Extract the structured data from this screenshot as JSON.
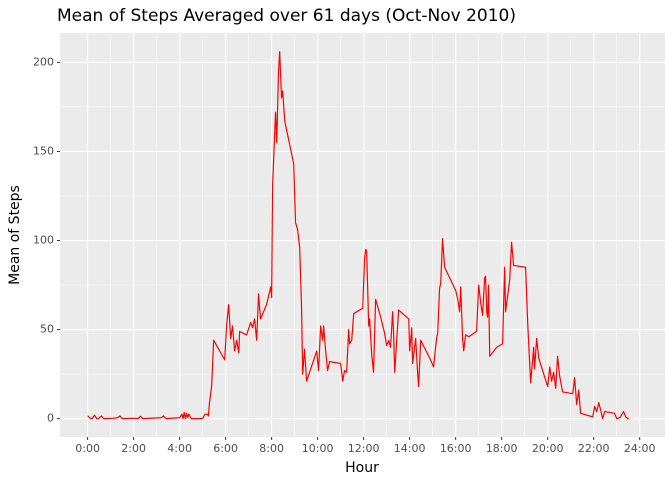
{
  "chart_data": {
    "type": "line",
    "title": "Mean of Steps Averaged over 61 days (Oct-Nov 2010)",
    "x_label": "Hour",
    "y_label": "Mean of Steps",
    "x": [
      0,
      0.1,
      0.2,
      0.3,
      0.4,
      0.5,
      0.6,
      0.7,
      1.1,
      1.3,
      1.4,
      1.5,
      2.0,
      2.2,
      2.3,
      2.4,
      3.2,
      3.3,
      3.4,
      4.0,
      4.1,
      4.15,
      4.2,
      4.25,
      4.3,
      4.35,
      4.4,
      4.5,
      5.0,
      5.1,
      5.2,
      5.25,
      5.3,
      5.39,
      5.48,
      5.96,
      6.04,
      6.13,
      6.22,
      6.3,
      6.39,
      6.48,
      6.57,
      6.61,
      6.91,
      7.09,
      7.17,
      7.26,
      7.35,
      7.43,
      7.52,
      7.78,
      7.96,
      8.0,
      8.04,
      8.17,
      8.22,
      8.3,
      8.35,
      8.43,
      8.48,
      8.57,
      8.96,
      9.04,
      9.13,
      9.22,
      9.3,
      9.35,
      9.43,
      9.52,
      9.96,
      10.04,
      10.13,
      10.22,
      10.26,
      10.35,
      10.43,
      10.52,
      11.0,
      11.09,
      11.17,
      11.26,
      11.35,
      11.39,
      11.48,
      11.57,
      11.96,
      12.04,
      12.09,
      12.13,
      12.22,
      12.26,
      12.35,
      12.43,
      12.52,
      12.74,
      12.91,
      13.0,
      13.09,
      13.17,
      13.26,
      13.3,
      13.35,
      13.52,
      13.96,
      14.0,
      14.09,
      14.13,
      14.26,
      14.35,
      14.39,
      14.48,
      14.91,
      15.04,
      15.17,
      15.22,
      15.3,
      15.35,
      15.43,
      15.52,
      16.0,
      16.09,
      16.17,
      16.22,
      16.3,
      16.35,
      16.43,
      16.57,
      16.91,
      17.0,
      17.09,
      17.17,
      17.26,
      17.3,
      17.35,
      17.39,
      17.43,
      17.48,
      17.78,
      18.04,
      18.13,
      18.17,
      18.26,
      18.35,
      18.43,
      18.52,
      19.04,
      19.13,
      19.26,
      19.39,
      19.43,
      19.52,
      19.61,
      20.0,
      20.09,
      20.17,
      20.26,
      20.35,
      20.43,
      20.52,
      20.65,
      21.09,
      21.17,
      21.26,
      21.35,
      21.43,
      21.96,
      22.04,
      22.13,
      22.22,
      22.3,
      22.39,
      22.48,
      22.91,
      23.0,
      23.13,
      23.3,
      23.39,
      23.48,
      23.52
    ],
    "series": [
      {
        "name": "Mean of Steps",
        "color": "#ff0000",
        "values": [
          1.7,
          0.3,
          0,
          2,
          0,
          0.3,
          1.5,
          0,
          0.2,
          0.5,
          1.5,
          0,
          0.2,
          0.1,
          1.3,
          0,
          0.5,
          1.5,
          0,
          0.5,
          2.5,
          0,
          3.5,
          0,
          3,
          0.5,
          2.5,
          0,
          0,
          2.5,
          2.5,
          1.5,
          9,
          18,
          44,
          33,
          52,
          64,
          45,
          52,
          38,
          44,
          37,
          49,
          47,
          54,
          51,
          56,
          44,
          70,
          56,
          64,
          74,
          68,
          130,
          172,
          155,
          195,
          206,
          180,
          184,
          167,
          143,
          110,
          106,
          96,
          63,
          25,
          39,
          21,
          38,
          27,
          52,
          44,
          52,
          38,
          27,
          32,
          31,
          21,
          27,
          26,
          50,
          42,
          44,
          59,
          62,
          90,
          95,
          94,
          52,
          56,
          36,
          26,
          67,
          57,
          48,
          41,
          44,
          40,
          60,
          48,
          26,
          61,
          56,
          38,
          51,
          31,
          45,
          25,
          18,
          44,
          33,
          29,
          45,
          48,
          73,
          76,
          101,
          85,
          72,
          67,
          60,
          74,
          45,
          38,
          47,
          46,
          49,
          75,
          65,
          58,
          79,
          80,
          60,
          57,
          75,
          35,
          40,
          42,
          85,
          60,
          69,
          78,
          99,
          86,
          85,
          54,
          20,
          40,
          28,
          45,
          34,
          18,
          29,
          21,
          26,
          17,
          35,
          24,
          15,
          14,
          23,
          8,
          16,
          3,
          1,
          7,
          4,
          9,
          5,
          0,
          4,
          3,
          0,
          0.5,
          4,
          1,
          0,
          0.5
        ]
      }
    ],
    "xlim": [
      -1.2,
      25.1
    ],
    "xticks": [
      {
        "value": 0,
        "label": "0:00"
      },
      {
        "value": 2,
        "label": "2:00"
      },
      {
        "value": 4,
        "label": "4:00"
      },
      {
        "value": 6,
        "label": "6:00"
      },
      {
        "value": 8,
        "label": "8:00"
      },
      {
        "value": 10,
        "label": "10:00"
      },
      {
        "value": 12,
        "label": "12:00"
      },
      {
        "value": 14,
        "label": "14:00"
      },
      {
        "value": 16,
        "label": "16:00"
      },
      {
        "value": 18,
        "label": "18:00"
      },
      {
        "value": 20,
        "label": "20:00"
      },
      {
        "value": 22,
        "label": "22:00"
      },
      {
        "value": 24,
        "label": "24:00"
      }
    ],
    "ylim": [
      -10.3,
      216.5
    ],
    "yticks": [
      0,
      50,
      100,
      150,
      200
    ],
    "grid": true
  }
}
